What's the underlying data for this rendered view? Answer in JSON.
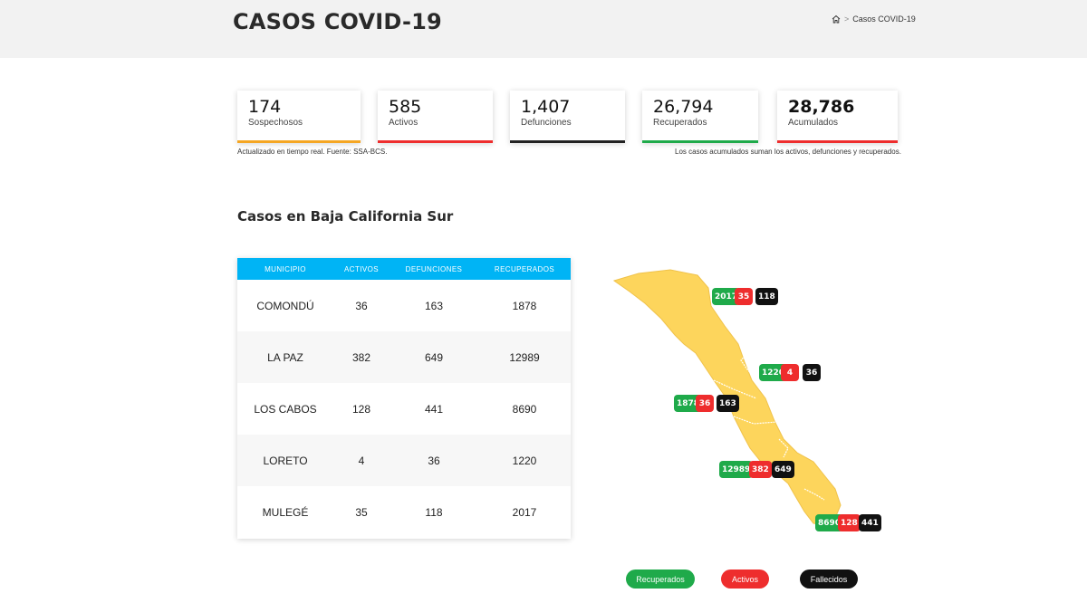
{
  "header": {
    "title": "CASOS COVID-19",
    "breadcrumb_current": "Casos COVID-19"
  },
  "cards": [
    {
      "value": "174",
      "label": "Sospechosos",
      "color": "#f5a623"
    },
    {
      "value": "585",
      "label": "Activos",
      "color": "#ee2d2d"
    },
    {
      "value": "1,407",
      "label": "Defunciones",
      "color": "#222222"
    },
    {
      "value": "26,794",
      "label": "Recuperados",
      "color": "#1faa4a"
    },
    {
      "value": "28,786",
      "label": "Acumulados",
      "color": "#ee2d2d"
    }
  ],
  "notes": {
    "left": "Actualizado en tiempo real. Fuente: SSA-BCS.",
    "right": "Los casos acumulados suman los activos, defunciones y recuperados."
  },
  "section": {
    "title": "Casos en Baja California Sur"
  },
  "table": {
    "headers": [
      "MUNICIPIO",
      "ACTIVOS",
      "DEFUNCIONES",
      "RECUPERADOS"
    ],
    "rows": [
      [
        "COMONDÚ",
        "36",
        "163",
        "1878"
      ],
      [
        "LA PAZ",
        "382",
        "649",
        "12989"
      ],
      [
        "LOS CABOS",
        "128",
        "441",
        "8690"
      ],
      [
        "LORETO",
        "4",
        "36",
        "1220"
      ],
      [
        "MULEGÉ",
        "35",
        "118",
        "2017"
      ]
    ]
  },
  "map": {
    "fill_color": "#fdd55c",
    "mulege": {
      "recuperados": "2017",
      "activos": "35",
      "fallecidos": "118"
    },
    "loreto": {
      "recuperados": "1220",
      "activos": "4",
      "fallecidos": "36"
    },
    "comondu": {
      "recuperados": "1878",
      "activos": "36",
      "fallecidos": "163"
    },
    "lapaz": {
      "recuperados": "12989",
      "activos": "382",
      "fallecidos": "649"
    },
    "loscabos": {
      "recuperados": "8690",
      "activos": "128",
      "fallecidos": "441"
    }
  },
  "legend": {
    "recuperados": "Recuperados",
    "activos": "Activos",
    "fallecidos": "Fallecidos",
    "colors": {
      "recuperados": "#1faa4a",
      "activos": "#ee2d2d",
      "fallecidos": "#111111"
    }
  }
}
